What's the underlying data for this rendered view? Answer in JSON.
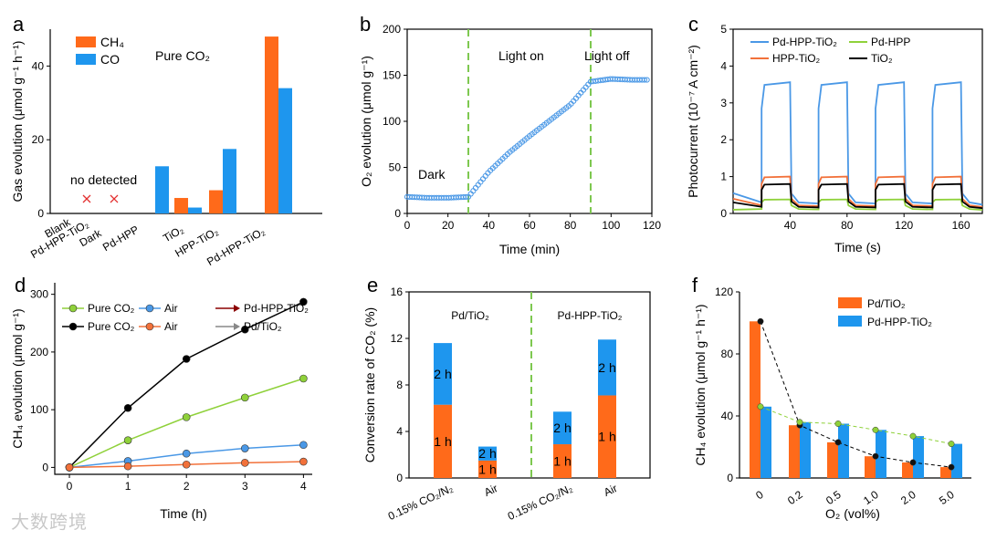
{
  "watermark": "大数跨境",
  "colors": {
    "ch4": "#ff6a1a",
    "co": "#1e96ee",
    "blue": "#4a98e6",
    "green": "#8fd13a",
    "orange": "#f2713a",
    "black": "#000000",
    "darkred": "#8b0000",
    "gray": "#888888",
    "dash": "#7ec850",
    "red_x": "#e33030"
  },
  "chart_data": [
    {
      "panel": "a",
      "type": "bar",
      "ylabel": "Gas evolution (μmol g⁻¹ h⁻¹)",
      "ylim": [
        0,
        50
      ],
      "yticks": [
        0,
        20,
        40
      ],
      "annotation": "Pure CO₂",
      "no_detected_label": "no detected",
      "categories": [
        "Blank",
        "Pd-HPP-TiO₂ Dark",
        "Pd-HPP",
        "TiO₂",
        "HPP-TiO₂",
        "Pd-HPP-TiO₂"
      ],
      "tick_labels": [
        "Blank",
        "Pd-HPP-TiO₂",
        "Dark",
        "Pd-HPP",
        "TiO₂",
        "HPP-TiO₂",
        "Pd-HPP-TiO₂"
      ],
      "series": [
        {
          "name": "CH₄",
          "values": [
            0,
            0,
            0,
            4.2,
            6.3,
            48
          ]
        },
        {
          "name": "CO",
          "values": [
            0,
            0,
            12.8,
            1.6,
            17.5,
            34
          ]
        }
      ]
    },
    {
      "panel": "b",
      "type": "scatter",
      "xlabel": "Time (min)",
      "ylabel": "O₂ evolution (μmol g⁻¹)",
      "xlim": [
        0,
        120
      ],
      "ylim": [
        0,
        200
      ],
      "xticks": [
        0,
        20,
        40,
        60,
        80,
        100,
        120
      ],
      "yticks": [
        0,
        50,
        100,
        150,
        200
      ],
      "regions": [
        {
          "label": "Dark"
        },
        {
          "label": "Light on"
        },
        {
          "label": "Light off"
        }
      ],
      "dividers": [
        30,
        90
      ],
      "points": [
        [
          0,
          18
        ],
        [
          10,
          17
        ],
        [
          20,
          17
        ],
        [
          30,
          18
        ],
        [
          40,
          45
        ],
        [
          50,
          66
        ],
        [
          60,
          84
        ],
        [
          70,
          101
        ],
        [
          80,
          118
        ],
        [
          90,
          143
        ],
        [
          100,
          146
        ],
        [
          110,
          145
        ],
        [
          118,
          145
        ]
      ]
    },
    {
      "panel": "c",
      "type": "line",
      "xlabel": "Time (s)",
      "ylabel": "Photocurrent (10⁻⁷ A cm⁻²)",
      "xlim": [
        0,
        175
      ],
      "ylim": [
        0,
        5
      ],
      "xticks": [
        40,
        80,
        120,
        160
      ],
      "yticks": [
        0,
        1,
        2,
        3,
        4,
        5
      ],
      "on_intervals": [
        [
          20,
          40
        ],
        [
          60,
          80
        ],
        [
          100,
          120
        ],
        [
          140,
          160
        ]
      ],
      "series": [
        {
          "name": "Pd-HPP-TiO₂",
          "color": "blue",
          "on": 3.56,
          "off": 0.3,
          "init": 0.55
        },
        {
          "name": "Pd-HPP",
          "color": "green",
          "on": 0.38,
          "off": 0.12,
          "init": 0.1
        },
        {
          "name": "HPP-TiO₂",
          "color": "orange",
          "on": 1.0,
          "off": 0.22,
          "init": 0.4
        },
        {
          "name": "TiO₂",
          "color": "black",
          "on": 0.8,
          "off": 0.18,
          "init": 0.3
        }
      ]
    },
    {
      "panel": "d",
      "type": "line",
      "xlabel": "Time (h)",
      "ylabel": "CH₄ evolution (μmol g⁻¹)",
      "xlim": [
        0,
        4
      ],
      "ylim": [
        0,
        300
      ],
      "xticks": [
        0,
        1,
        2,
        3,
        4
      ],
      "yticks": [
        0,
        100,
        200,
        300
      ],
      "x": [
        0,
        1,
        2,
        3,
        4
      ],
      "series": [
        {
          "name": "Pure CO₂",
          "color": "green",
          "values": [
            0,
            47,
            87,
            121,
            154
          ]
        },
        {
          "name": "Air",
          "color": "blue",
          "values": [
            0,
            11,
            24,
            33,
            39
          ]
        },
        {
          "name": "Pure CO₂",
          "color": "black",
          "values": [
            0,
            103,
            188,
            239,
            287
          ]
        },
        {
          "name": "Air",
          "color": "orange",
          "values": [
            0,
            2,
            5,
            8,
            10
          ]
        }
      ],
      "legend_groups": [
        {
          "name": "Pd-HPP-TiO₂",
          "color": "darkred"
        },
        {
          "name": "Pd/TiO₂",
          "color": "gray"
        }
      ]
    },
    {
      "panel": "e",
      "type": "bar",
      "ylabel": "Conversion rate of CO₂ (%)",
      "ylim": [
        0,
        16
      ],
      "yticks": [
        0,
        4,
        8,
        12,
        16
      ],
      "groups": [
        "Pd/TiO₂",
        "Pd-HPP-TiO₂"
      ],
      "categories": [
        "0.15% CO₂/N₂",
        "Air",
        "0.15% CO₂/N₂",
        "Air"
      ],
      "series": [
        {
          "name": "1 h",
          "values": [
            6.3,
            1.5,
            2.9,
            7.1
          ]
        },
        {
          "name": "2 h",
          "values": [
            5.3,
            1.2,
            2.8,
            4.8
          ]
        }
      ]
    },
    {
      "panel": "f",
      "type": "bar",
      "xlabel": "O₂ (vol%)",
      "ylabel": "CH₄ evolution (μmol g⁻¹ h⁻¹)",
      "ylim": [
        0,
        120
      ],
      "yticks": [
        0,
        40,
        80,
        120
      ],
      "categories": [
        "0",
        "0.2",
        "0.5",
        "1.0",
        "2.0",
        "5.0"
      ],
      "series": [
        {
          "name": "Pd/TiO₂",
          "values": [
            101,
            34,
            23,
            14,
            10,
            7
          ]
        },
        {
          "name": "Pd-HPP-TiO₂",
          "values": [
            46,
            36,
            35,
            31,
            27,
            22
          ]
        }
      ]
    }
  ]
}
